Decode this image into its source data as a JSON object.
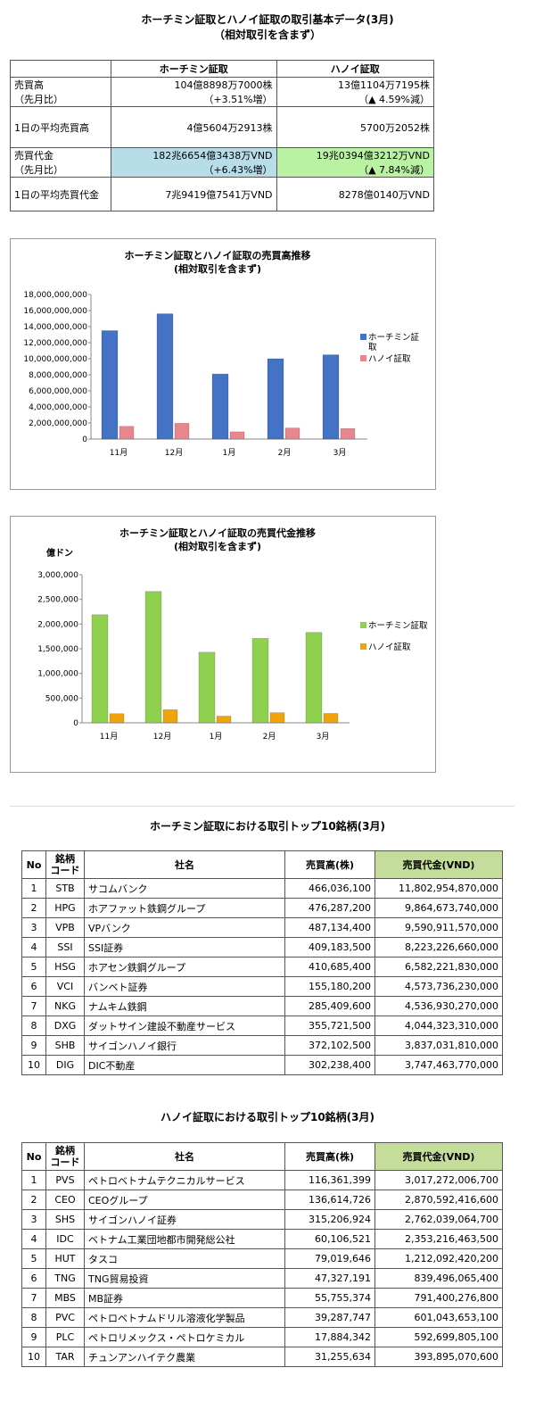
{
  "summary": {
    "title": "ホーチミン証取とハノイ証取の取引基本データ(3月)",
    "subtitle": "（相対取引を含まず）",
    "col_hcm": "ホーチミン証取",
    "col_hnx": "ハノイ証取",
    "rows": [
      {
        "label1": "売買高",
        "label2": "（先月比）",
        "hcm": "104億8898万7000株",
        "hcm2": "（+3.51%増）",
        "hnx": "13億1104万7195株",
        "hnx2": "（▲ 4.59%減）"
      },
      {
        "label1": "1日の平均売買高",
        "label2": "",
        "hcm": "4億5604万2913株",
        "hcm2": "",
        "hnx": "5700万2052株",
        "hnx2": ""
      },
      {
        "label1": "売買代金",
        "label2": "（先月比）",
        "hcm": "182兆6654億3438万VND",
        "hcm2": "（+6.43%増）",
        "hnx": "19兆0394億3212万VND",
        "hnx2": "（▲ 7.84%減）"
      },
      {
        "label1": "1日の平均売買代金",
        "label2": "",
        "hcm": "7兆9419億7541万VND",
        "hcm2": "",
        "hnx": "8278億0140万VND",
        "hnx2": ""
      }
    ]
  },
  "chart_data": [
    {
      "type": "bar",
      "title": "ホーチミン証取とハノイ証取の売買高推移",
      "subtitle": "(相対取引を含まず)",
      "categories": [
        "11月",
        "12月",
        "1月",
        "2月",
        "3月"
      ],
      "series": [
        {
          "name": "ホーチミン証取",
          "values": [
            13500000000,
            15600000000,
            8100000000,
            10000000000,
            10490000000
          ],
          "color": "#4472c4"
        },
        {
          "name": "ハノイ証取",
          "values": [
            1580000000,
            1960000000,
            900000000,
            1370000000,
            1310000000
          ],
          "color": "#e8868d"
        }
      ],
      "yticks": [
        "0",
        "2,000,000,000",
        "4,000,000,000",
        "6,000,000,000",
        "8,000,000,000",
        "10,000,000,000",
        "12,000,000,000",
        "14,000,000,000",
        "16,000,000,000",
        "18,000,000,000"
      ],
      "ylim": [
        0,
        18000000000
      ],
      "legend": "right"
    },
    {
      "type": "bar",
      "title": "ホーチミン証取とハノイ証取の売買代金推移",
      "subtitle": "(相対取引を含まず)",
      "unit": "億ドン",
      "categories": [
        "11月",
        "12月",
        "1月",
        "2月",
        "3月"
      ],
      "series": [
        {
          "name": "ホーチミン証取",
          "values": [
            2190000,
            2660000,
            1430000,
            1710000,
            1830000
          ],
          "color": "#8fd14f"
        },
        {
          "name": "ハノイ証取",
          "values": [
            185000,
            265000,
            135000,
            205000,
            190000
          ],
          "color": "#f0a30a"
        }
      ],
      "yticks": [
        "0",
        "500,000",
        "1,000,000",
        "1,500,000",
        "2,000,000",
        "2,500,000",
        "3,000,000"
      ],
      "ylim": [
        0,
        3000000
      ],
      "legend": "right"
    }
  ],
  "hcm_top10": {
    "title": "ホーチミン証取における取引トップ10銘柄(3月)",
    "headers": [
      "No",
      "銘柄",
      "コード",
      "社名",
      "売買高(株)",
      "売買代金(VND)"
    ],
    "rows": [
      [
        "1",
        "STB",
        "サコムバンク",
        "466,036,100",
        "11,802,954,870,000"
      ],
      [
        "2",
        "HPG",
        "ホアファット鉄鋼グループ",
        "476,287,200",
        "9,864,673,740,000"
      ],
      [
        "3",
        "VPB",
        "VPバンク",
        "487,134,400",
        "9,590,911,570,000"
      ],
      [
        "4",
        "SSI",
        "SSI証券",
        "409,183,500",
        "8,223,226,660,000"
      ],
      [
        "5",
        "HSG",
        "ホアセン鉄鋼グループ",
        "410,685,400",
        "6,582,221,830,000"
      ],
      [
        "6",
        "VCI",
        "バンベト証券",
        "155,180,200",
        "4,573,736,230,000"
      ],
      [
        "7",
        "NKG",
        "ナムキム鉄鋼",
        "285,409,600",
        "4,536,930,270,000"
      ],
      [
        "8",
        "DXG",
        "ダットサイン建設不動産サービス",
        "355,721,500",
        "4,044,323,310,000"
      ],
      [
        "9",
        "SHB",
        "サイゴンハノイ銀行",
        "372,102,500",
        "3,837,031,810,000"
      ],
      [
        "10",
        "DIG",
        "DIC不動産",
        "302,238,400",
        "3,747,463,770,000"
      ]
    ]
  },
  "hnx_top10": {
    "title": "ハノイ証取における取引トップ10銘柄(3月)",
    "headers": [
      "No",
      "銘柄",
      "コード",
      "社名",
      "売買高(株)",
      "売買代金(VND)"
    ],
    "rows": [
      [
        "1",
        "PVS",
        "ペトロベトナムテクニカルサービス",
        "116,361,399",
        "3,017,272,006,700"
      ],
      [
        "2",
        "CEO",
        "CEOグループ",
        "136,614,726",
        "2,870,592,416,600"
      ],
      [
        "3",
        "SHS",
        "サイゴンハノイ証券",
        "315,206,924",
        "2,762,039,064,700"
      ],
      [
        "4",
        "IDC",
        "ベトナム工業団地都市開発総公社",
        "60,106,521",
        "2,353,216,463,500"
      ],
      [
        "5",
        "HUT",
        "タスコ",
        "79,019,646",
        "1,212,092,420,200"
      ],
      [
        "6",
        "TNG",
        "TNG貿易投資",
        "47,327,191",
        "839,496,065,400"
      ],
      [
        "7",
        "MBS",
        "MB証券",
        "55,755,374",
        "791,400,276,800"
      ],
      [
        "8",
        "PVC",
        "ペトロベトナムドリル溶液化学製品",
        "39,287,747",
        "601,043,653,100"
      ],
      [
        "9",
        "PLC",
        "ペトロリメックス・ペトロケミカル",
        "17,884,342",
        "592,699,805,100"
      ],
      [
        "10",
        "TAR",
        "チュンアンハイテク農業",
        "31,255,634",
        "393,895,070,600"
      ]
    ]
  }
}
